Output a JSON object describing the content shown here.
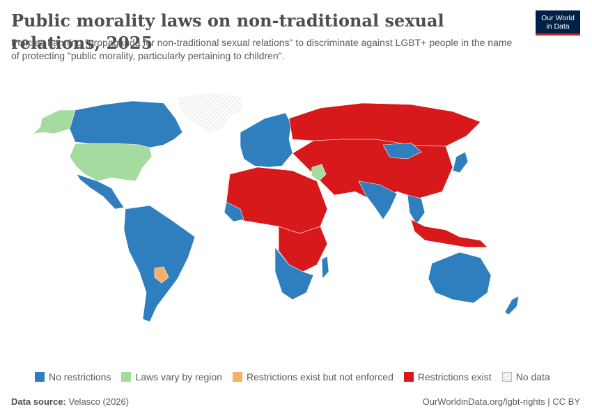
{
  "header": {
    "title": "Public morality laws on non-traditional sexual relations, 2025",
    "subtitle": "Policies banning \"propaganda for non-traditional sexual relations\" to discriminate against LGBT+ people in the name of protecting \"public morality, particularly pertaining to children\"."
  },
  "logo": {
    "line1": "Our World",
    "line2": "in Data"
  },
  "colors": {
    "no_restrictions": "#2f7fbf",
    "laws_vary": "#a6dba0",
    "not_enforced": "#fdae61",
    "restrictions_exist": "#d7191c",
    "no_data": "#e8e8e8"
  },
  "legend": [
    {
      "key": "no_restrictions",
      "label": "No restrictions"
    },
    {
      "key": "laws_vary",
      "label": "Laws vary by region"
    },
    {
      "key": "not_enforced",
      "label": "Restrictions exist but not enforced"
    },
    {
      "key": "restrictions_exist",
      "label": "Restrictions exist"
    },
    {
      "key": "no_data",
      "label": "No data"
    }
  ],
  "footer": {
    "source_label": "Data source:",
    "source_value": "Velasco (2026)",
    "url": "OurWorldinData.org/lgbt-rights",
    "separator": " | ",
    "license": "CC BY"
  }
}
